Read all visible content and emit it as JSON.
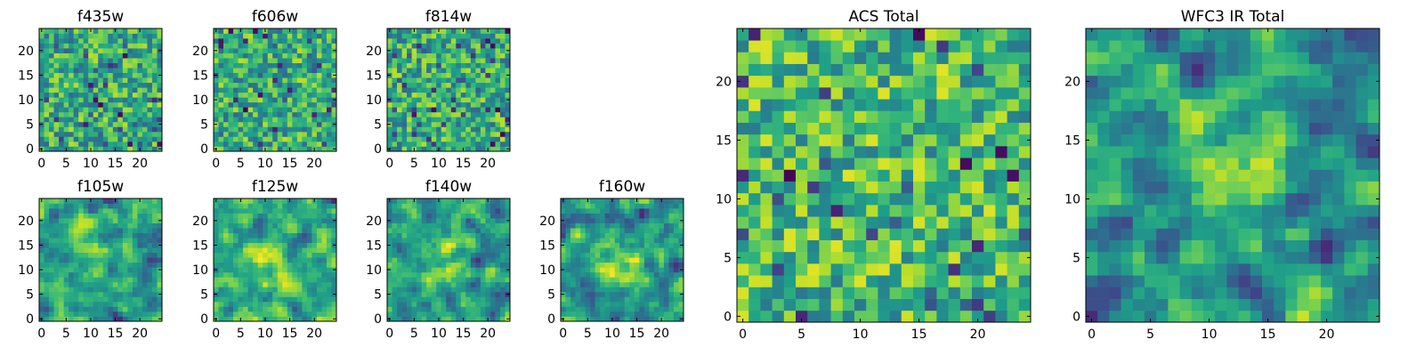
{
  "figure": {
    "background": "#ffffff",
    "colormap": "viridis"
  },
  "chart_data": [
    {
      "type": "heatmap",
      "title": "f435w",
      "grid_size": 25,
      "xlim": [
        -0.5,
        24.5
      ],
      "ylim": [
        -0.5,
        24.5
      ],
      "x_ticks": [
        0,
        5,
        10,
        15,
        20
      ],
      "y_ticks": [
        0,
        5,
        10,
        15,
        20
      ],
      "value_range": [
        0,
        1
      ],
      "seed": 435,
      "smooth": 0,
      "bias": 0.62,
      "blob": null
    },
    {
      "type": "heatmap",
      "title": "f606w",
      "grid_size": 25,
      "xlim": [
        -0.5,
        24.5
      ],
      "ylim": [
        -0.5,
        24.5
      ],
      "x_ticks": [
        0,
        5,
        10,
        15,
        20
      ],
      "y_ticks": [
        0,
        5,
        10,
        15,
        20
      ],
      "value_range": [
        0,
        1
      ],
      "seed": 606,
      "smooth": 0,
      "bias": 0.62,
      "blob": null
    },
    {
      "type": "heatmap",
      "title": "f814w",
      "grid_size": 25,
      "xlim": [
        -0.5,
        24.5
      ],
      "ylim": [
        -0.5,
        24.5
      ],
      "x_ticks": [
        0,
        5,
        10,
        15,
        20
      ],
      "y_ticks": [
        0,
        5,
        10,
        15,
        20
      ],
      "value_range": [
        0,
        1
      ],
      "seed": 814,
      "smooth": 0,
      "bias": 0.62,
      "blob": null
    },
    {
      "type": "heatmap",
      "title": "f105w",
      "grid_size": 25,
      "xlim": [
        -0.5,
        24.5
      ],
      "ylim": [
        -0.5,
        24.5
      ],
      "x_ticks": [
        0,
        5,
        10,
        15,
        20
      ],
      "y_ticks": [
        0,
        5,
        10,
        15,
        20
      ],
      "value_range": [
        0,
        1
      ],
      "seed": 105,
      "smooth": 1,
      "bias": 0.62,
      "blob": [
        12,
        12,
        0.15
      ]
    },
    {
      "type": "heatmap",
      "title": "f125w",
      "grid_size": 25,
      "xlim": [
        -0.5,
        24.5
      ],
      "ylim": [
        -0.5,
        24.5
      ],
      "x_ticks": [
        0,
        5,
        10,
        15,
        20
      ],
      "y_ticks": [
        0,
        5,
        10,
        15,
        20
      ],
      "value_range": [
        0,
        1
      ],
      "seed": 125,
      "smooth": 1,
      "bias": 0.6,
      "blob": [
        12,
        12,
        0.2
      ]
    },
    {
      "type": "heatmap",
      "title": "f140w",
      "grid_size": 25,
      "xlim": [
        -0.5,
        24.5
      ],
      "ylim": [
        -0.5,
        24.5
      ],
      "x_ticks": [
        0,
        5,
        10,
        15,
        20
      ],
      "y_ticks": [
        0,
        5,
        10,
        15,
        20
      ],
      "value_range": [
        0,
        1
      ],
      "seed": 140,
      "smooth": 1,
      "bias": 0.6,
      "blob": [
        12,
        12,
        0.2
      ]
    },
    {
      "type": "heatmap",
      "title": "f160w",
      "grid_size": 25,
      "xlim": [
        -0.5,
        24.5
      ],
      "ylim": [
        -0.5,
        24.5
      ],
      "x_ticks": [
        0,
        5,
        10,
        15,
        20
      ],
      "y_ticks": [
        0,
        5,
        10,
        15,
        20
      ],
      "value_range": [
        0,
        1
      ],
      "seed": 160,
      "smooth": 1,
      "bias": 0.6,
      "blob": [
        12,
        12,
        0.25
      ]
    },
    {
      "type": "heatmap",
      "title": "ACS Total",
      "grid_size": 25,
      "xlim": [
        -0.5,
        24.5
      ],
      "ylim": [
        -0.5,
        24.5
      ],
      "x_ticks": [
        0,
        5,
        10,
        15,
        20
      ],
      "y_ticks": [
        0,
        5,
        10,
        15,
        20
      ],
      "value_range": [
        0,
        1
      ],
      "seed": 999,
      "smooth": 0,
      "bias": 0.68,
      "blob": null
    },
    {
      "type": "heatmap",
      "title": "WFC3 IR Total",
      "grid_size": 25,
      "xlim": [
        -0.5,
        24.5
      ],
      "ylim": [
        -0.5,
        24.5
      ],
      "x_ticks": [
        0,
        5,
        10,
        15,
        20
      ],
      "y_ticks": [
        0,
        5,
        10,
        15,
        20
      ],
      "value_range": [
        0,
        1
      ],
      "seed": 3,
      "smooth": 1,
      "bias": 0.6,
      "blob": [
        12,
        12,
        0.3
      ]
    }
  ]
}
